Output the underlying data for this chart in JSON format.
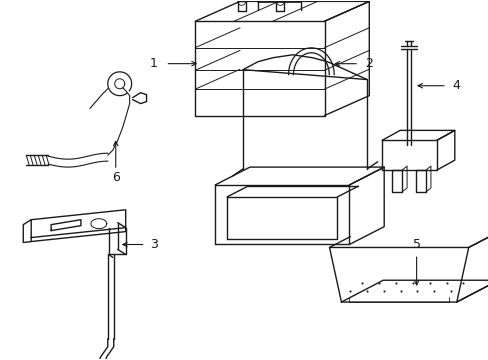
{
  "background_color": "#ffffff",
  "line_color": "#1a1a1a",
  "line_width": 1.0,
  "label_fontsize": 8,
  "figsize": [
    4.89,
    3.6
  ],
  "dpi": 100
}
